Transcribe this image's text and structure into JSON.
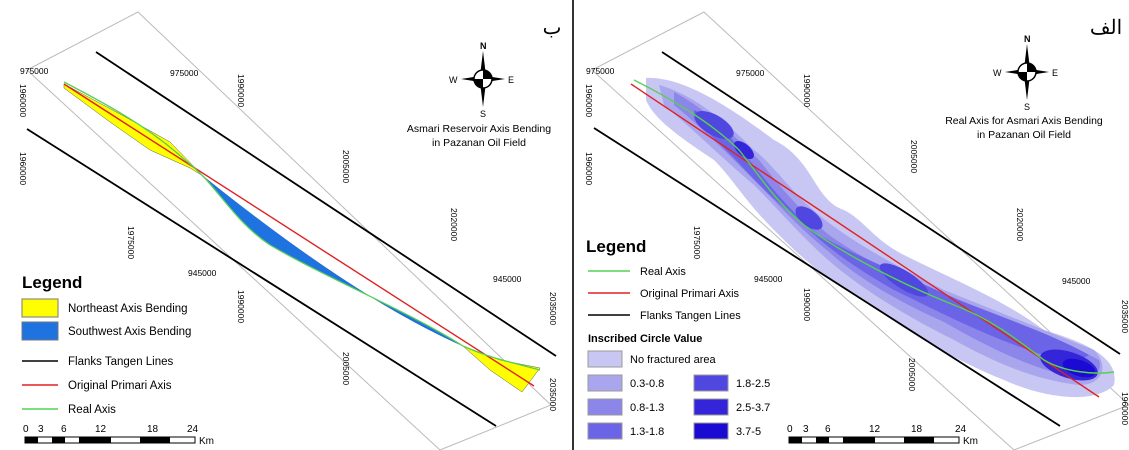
{
  "colors": {
    "northeast_bending": "#ffff00",
    "southwest_bending": "#1e73e0",
    "flank_lines": "#000000",
    "primary_axis": "#e02020",
    "real_axis": "#55d055",
    "class_no_fracture": "#c8c6f2",
    "class_03_08": "#aaa6ee",
    "class_08_13": "#8c86ea",
    "class_13_18": "#6c64e6",
    "class_18_25": "#5046e0",
    "class_25_37": "#3424da",
    "class_37_5": "#1a0ad2"
  },
  "panel_b": {
    "letter": "ب",
    "title_line1": "Asmari Reservoir Axis Bending",
    "title_line2": "in Pazanan Oil Field",
    "north_arrow": {
      "n": "N",
      "s": "S",
      "e": "E",
      "w": "W"
    },
    "grid_labels": [
      "975000",
      "975000",
      "1960000",
      "1960000",
      "1990000",
      "1975000",
      "2005000",
      "2020000",
      "945000",
      "945000",
      "1990000",
      "2005000",
      "2035000",
      "2035000"
    ],
    "legend": {
      "heading": "Legend",
      "items": [
        {
          "label": "Northeast Axis Bending",
          "type": "fill",
          "color": "#ffff00"
        },
        {
          "label": "Southwest Axis Bending",
          "type": "fill",
          "color": "#1e73e0"
        },
        {
          "label": "Flanks Tangen Lines",
          "type": "line",
          "color": "#000000"
        },
        {
          "label": "Original Primari Axis",
          "type": "line",
          "color": "#e02020"
        },
        {
          "label": "Real Axis",
          "type": "line",
          "color": "#55d055"
        }
      ]
    },
    "scalebar": {
      "ticks": [
        "0",
        "3",
        "6",
        "12",
        "18",
        "24"
      ],
      "unit": "Km"
    }
  },
  "panel_a": {
    "letter": "الف",
    "title_line1": "Real Axis for Asmari Axis Bending",
    "title_line2": "in Pazanan Oil Field",
    "north_arrow": {
      "n": "N",
      "s": "S",
      "e": "E",
      "w": "W"
    },
    "grid_labels": [
      "975000",
      "975000",
      "1960000",
      "1960000",
      "1990000",
      "2005000",
      "1975000",
      "2020000",
      "945000",
      "945000",
      "1990000",
      "2005000",
      "2035000",
      "1960000"
    ],
    "legend": {
      "heading": "Legend",
      "items": [
        {
          "label": "Real Axis",
          "color": "#55d055"
        },
        {
          "label": "Original Primari Axis",
          "color": "#e02020"
        },
        {
          "label": "Flanks Tangen Lines",
          "color": "#000000"
        }
      ],
      "circle_heading": "Inscribed Circle Value",
      "classes": [
        {
          "label": "No fractured area",
          "color": "#c8c6f2"
        },
        {
          "label": "0.3-0.8",
          "color": "#aaa6ee"
        },
        {
          "label": "1.8-2.5",
          "color": "#5046e0"
        },
        {
          "label": "0.8-1.3",
          "color": "#8c86ea"
        },
        {
          "label": "2.5-3.7",
          "color": "#3424da"
        },
        {
          "label": "1.3-1.8",
          "color": "#6c64e6"
        },
        {
          "label": "3.7-5",
          "color": "#1a0ad2"
        }
      ]
    },
    "scalebar": {
      "ticks": [
        "0",
        "3",
        "6",
        "12",
        "18",
        "24"
      ],
      "unit": "Km"
    }
  }
}
